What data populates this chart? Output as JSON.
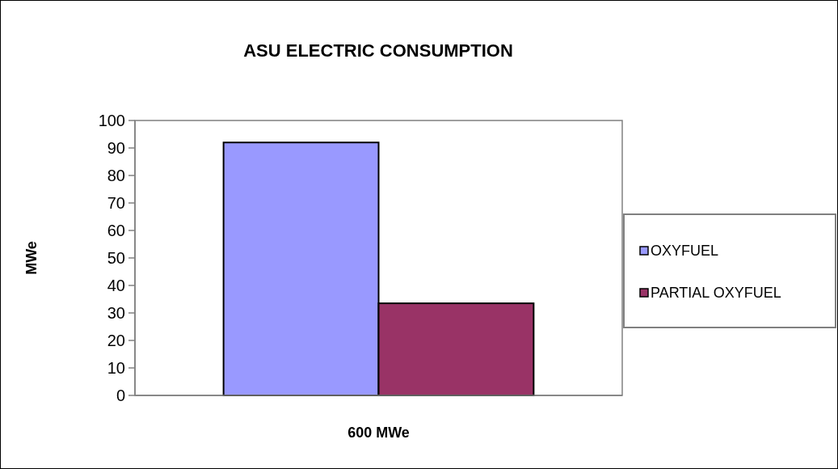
{
  "chart_data": {
    "type": "bar",
    "title": "ASU ELECTRIC CONSUMPTION",
    "xlabel": "600 MWe",
    "ylabel": "MWe",
    "categories": [
      null
    ],
    "series": [
      {
        "name": "OXYFUEL",
        "color": "#9999ff",
        "values": [
          92
        ]
      },
      {
        "name": "PARTIAL OXYFUEL",
        "color": "#993366",
        "values": [
          33.5
        ]
      }
    ],
    "ylim": [
      0,
      100
    ],
    "yticks": [
      0,
      10,
      20,
      30,
      40,
      50,
      60,
      70,
      80,
      90,
      100
    ],
    "legend": "right",
    "grid": false
  }
}
